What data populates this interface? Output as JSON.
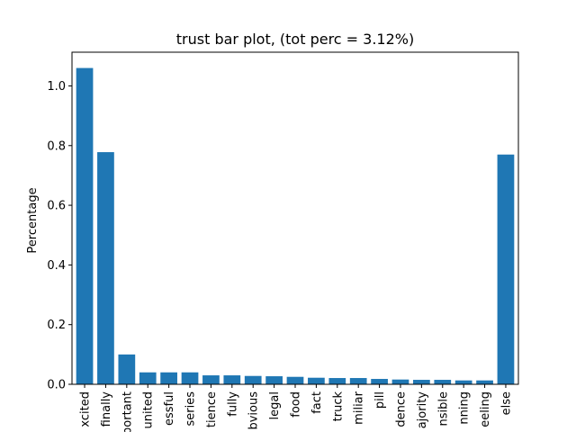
{
  "chart_data": {
    "type": "bar",
    "title": "trust bar plot, (tot perc = 3.12%)",
    "xlabel": "",
    "ylabel": "Percentage",
    "ylim": [
      0,
      1.113
    ],
    "yticks": [
      0.0,
      0.2,
      0.4,
      0.6,
      0.8,
      1.0
    ],
    "ytick_labels": [
      "0.0",
      "0.2",
      "0.4",
      "0.6",
      "0.8",
      "1.0"
    ],
    "categories": [
      "xcited",
      "finally",
      "portant",
      "united",
      "essful",
      "series",
      "tience",
      "fully",
      "bvious",
      "legal",
      "food",
      "fact",
      "truck",
      "miliar",
      "pill",
      "dence",
      "ajority",
      "nsible",
      "nning",
      "eeling",
      "else"
    ],
    "values": [
      1.06,
      0.778,
      0.1,
      0.04,
      0.04,
      0.04,
      0.03,
      0.03,
      0.028,
      0.027,
      0.025,
      0.022,
      0.021,
      0.021,
      0.018,
      0.016,
      0.015,
      0.015,
      0.013,
      0.013,
      0.77
    ],
    "bar_color": "#1f77b4",
    "grid": false,
    "legend": "none"
  }
}
